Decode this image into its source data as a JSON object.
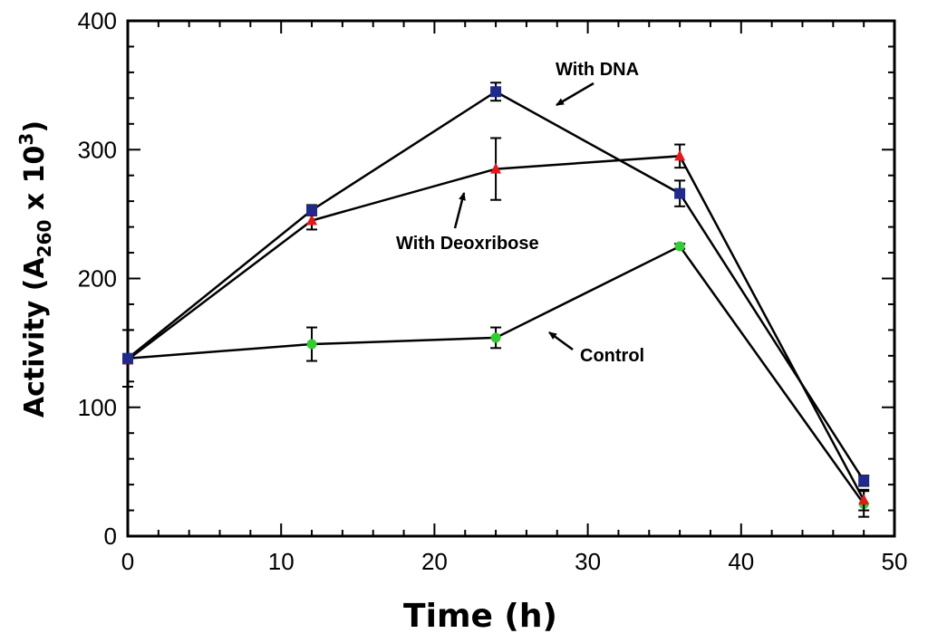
{
  "chart_data": {
    "type": "line",
    "title": "",
    "xlabel": "Time (h)",
    "ylabel": {
      "prefix": "Activity (A",
      "subscript": "260",
      "middle": " x 10",
      "superscript": "3",
      "suffix": ")"
    },
    "xlim": [
      0,
      50
    ],
    "ylim": [
      0,
      400
    ],
    "x_ticks": [
      0,
      10,
      20,
      30,
      40,
      50
    ],
    "y_ticks": [
      0,
      100,
      200,
      300,
      400
    ],
    "x_tick_labels": [
      "0",
      "10",
      "20",
      "30",
      "40",
      "50"
    ],
    "y_tick_labels": [
      "0",
      "100",
      "200",
      "300",
      "400"
    ],
    "x": [
      0,
      12,
      24,
      36,
      48
    ],
    "series": [
      {
        "name": "With DNA",
        "marker": "square",
        "color": "#1f2a8c",
        "values": [
          138,
          253,
          345,
          266,
          43
        ],
        "errors": [
          3,
          4,
          7,
          10,
          4
        ]
      },
      {
        "name": "With Deoxribose",
        "marker": "triangle",
        "color": "#e31a1c",
        "values": [
          137,
          245,
          285,
          295,
          28
        ],
        "errors": [
          3,
          7,
          24,
          9,
          8
        ]
      },
      {
        "name": "Control",
        "marker": "circle",
        "color": "#33cc33",
        "values": [
          138,
          149,
          154,
          225,
          25
        ],
        "errors": [
          22,
          13,
          8,
          2,
          10
        ]
      }
    ],
    "annotations": [
      {
        "text": "With DNA",
        "series": "With DNA"
      },
      {
        "text": "With Deoxribose",
        "series": "With Deoxribose"
      },
      {
        "text": "Control",
        "series": "Control"
      }
    ]
  }
}
